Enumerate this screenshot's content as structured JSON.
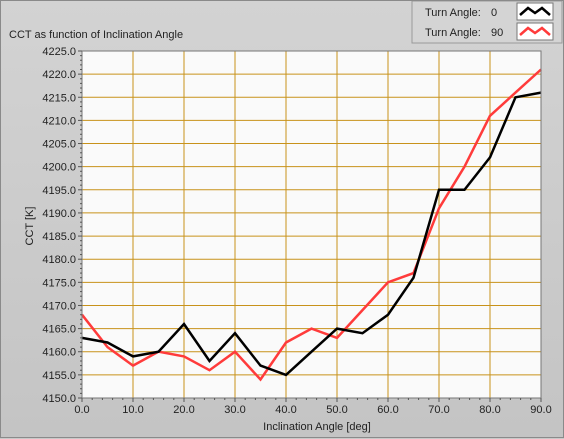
{
  "chart_data": {
    "type": "line",
    "title": "CCT as function of Inclination Angle",
    "xlabel": "Inclination Angle [deg]",
    "ylabel": "CCT [K]",
    "xlim": [
      0,
      90
    ],
    "ylim": [
      4150,
      4225
    ],
    "x_ticks": [
      "0.0",
      "10.0",
      "20.0",
      "30.0",
      "40.0",
      "50.0",
      "60.0",
      "70.0",
      "80.0",
      "90.0"
    ],
    "y_ticks": [
      "4150.0",
      "4155.0",
      "4160.0",
      "4165.0",
      "4170.0",
      "4175.0",
      "4180.0",
      "4185.0",
      "4190.0",
      "4195.0",
      "4200.0",
      "4205.0",
      "4210.0",
      "4215.0",
      "4220.0",
      "4225.0"
    ],
    "grid": true,
    "legend_position": "top-right",
    "x": [
      0,
      5,
      10,
      15,
      20,
      25,
      30,
      35,
      40,
      45,
      50,
      55,
      60,
      65,
      70,
      75,
      80,
      85,
      90
    ],
    "series": [
      {
        "name": "Turn Angle:",
        "value": "0",
        "color": "#000000",
        "values": [
          4163,
          4162,
          4159,
          4160,
          4166,
          4158,
          4164,
          4157,
          4155,
          4160,
          4165,
          4164,
          4168,
          4176,
          4195,
          4195,
          4202,
          4215,
          4216
        ]
      },
      {
        "name": "Turn Angle:",
        "value": "90",
        "color": "#ff3b3b",
        "values": [
          4168,
          4161,
          4157,
          4160,
          4159,
          4156,
          4160,
          4154,
          4162,
          4165,
          4163,
          4169,
          4175,
          4177,
          4191,
          4200,
          4211,
          4216,
          4221
        ]
      }
    ]
  },
  "colors": {
    "plot_background": "#fafafa",
    "grid": "#c8921a",
    "panel": "#c9c9c9"
  }
}
